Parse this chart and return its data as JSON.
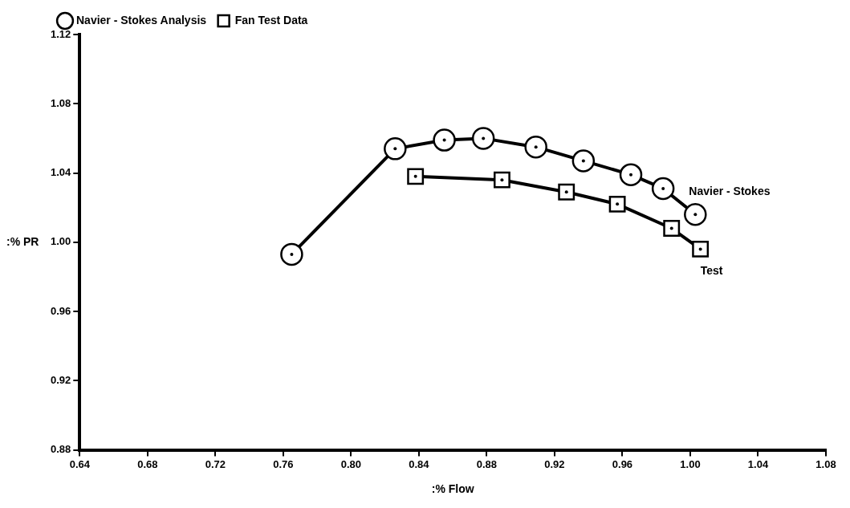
{
  "chart_data": {
    "type": "line",
    "xlabel": ":% Flow",
    "ylabel": ":% PR",
    "xlim": [
      0.64,
      1.08
    ],
    "xticks": [
      0.64,
      0.68,
      0.72,
      0.76,
      {
        "value": 0.8,
        "label": "0.80"
      },
      0.84,
      0.88,
      0.92,
      0.96,
      {
        "value": 1,
        "label": "1.00"
      },
      1.04,
      1.08
    ],
    "ylim": [
      0.88,
      1.12
    ],
    "yticks": [
      0.88,
      0.92,
      0.96,
      {
        "value": 1,
        "label": "1.00"
      },
      1.04,
      1.08,
      1.12
    ],
    "grid": false,
    "legend": "top left",
    "series": [
      {
        "name": "Navier - Stokes Analysis",
        "color": "#000000",
        "marker": "circle",
        "x": [
          0.765,
          0.826,
          0.855,
          0.878,
          0.909,
          0.937,
          0.965,
          0.984,
          1.003
        ],
        "values": [
          0.993,
          1.054,
          1.059,
          1.06,
          1.055,
          1.047,
          1.039,
          1.031,
          1.016
        ]
      },
      {
        "name": "Fan Test Data",
        "color": "#000000",
        "marker": "square",
        "x": [
          0.838,
          0.889,
          0.927,
          0.957,
          0.989,
          1.006
        ],
        "values": [
          1.038,
          1.036,
          1.029,
          1.022,
          1.008,
          0.996
        ]
      }
    ],
    "annotations": [
      {
        "text": "Navier - Stokes",
        "x": 1.003,
        "y": 1.016
      },
      {
        "text": "Test",
        "x": 1.006,
        "y": 0.996
      }
    ]
  }
}
